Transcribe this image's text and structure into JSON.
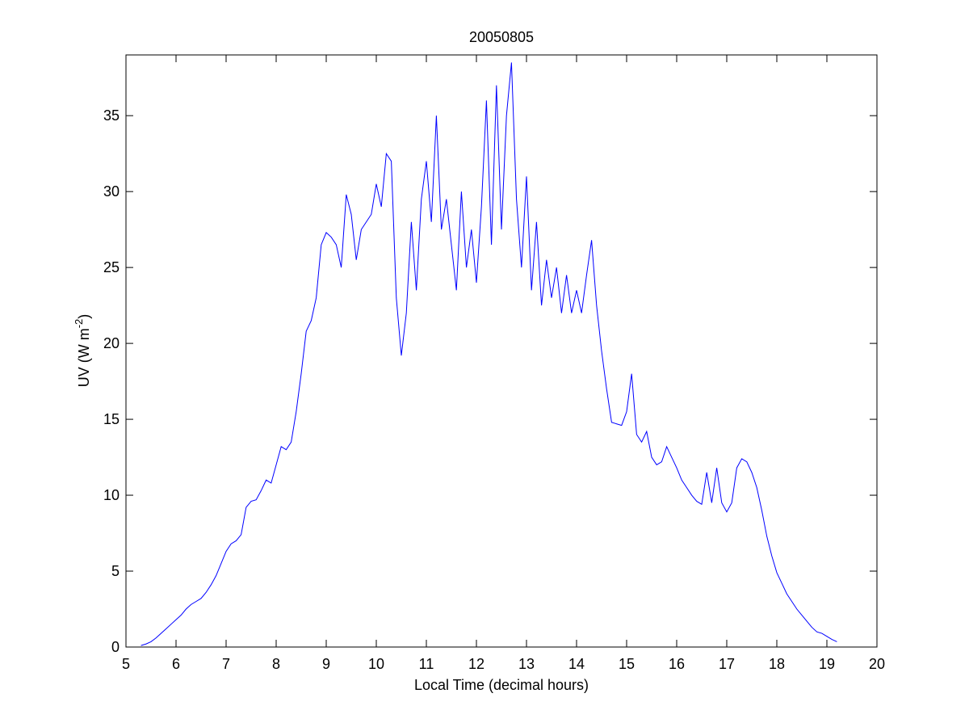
{
  "chart_data": {
    "type": "line",
    "title": "20050805",
    "xlabel": "Local Time (decimal hours)",
    "ylabel": [
      "UV (W m",
      "-2",
      ")"
    ],
    "xlim": [
      5,
      20
    ],
    "ylim": [
      0,
      39
    ],
    "xticks": [
      5,
      6,
      7,
      8,
      9,
      10,
      11,
      12,
      13,
      14,
      15,
      16,
      17,
      18,
      19,
      20
    ],
    "yticks": [
      0,
      5,
      10,
      15,
      20,
      25,
      30,
      35
    ],
    "grid": false,
    "series": [
      {
        "color": "#0000ff",
        "x": [
          5.3,
          5.4,
          5.5,
          5.6,
          5.7,
          5.8,
          5.9,
          6.0,
          6.1,
          6.2,
          6.3,
          6.4,
          6.5,
          6.6,
          6.7,
          6.8,
          6.9,
          7.0,
          7.1,
          7.2,
          7.3,
          7.4,
          7.5,
          7.6,
          7.7,
          7.8,
          7.9,
          8.0,
          8.1,
          8.2,
          8.3,
          8.4,
          8.5,
          8.6,
          8.7,
          8.8,
          8.9,
          9.0,
          9.1,
          9.2,
          9.3,
          9.4,
          9.5,
          9.6,
          9.7,
          9.8,
          9.9,
          10.0,
          10.1,
          10.2,
          10.3,
          10.4,
          10.5,
          10.6,
          10.7,
          10.8,
          10.9,
          11.0,
          11.1,
          11.2,
          11.3,
          11.4,
          11.5,
          11.6,
          11.7,
          11.8,
          11.9,
          12.0,
          12.1,
          12.2,
          12.3,
          12.4,
          12.5,
          12.6,
          12.7,
          12.8,
          12.9,
          13.0,
          13.1,
          13.2,
          13.3,
          13.4,
          13.5,
          13.6,
          13.7,
          13.8,
          13.9,
          14.0,
          14.1,
          14.2,
          14.3,
          14.4,
          14.5,
          14.6,
          14.7,
          14.8,
          14.9,
          15.0,
          15.1,
          15.2,
          15.3,
          15.4,
          15.5,
          15.6,
          15.7,
          15.8,
          15.9,
          16.0,
          16.1,
          16.2,
          16.3,
          16.4,
          16.5,
          16.6,
          16.7,
          16.8,
          16.9,
          17.0,
          17.1,
          17.2,
          17.3,
          17.4,
          17.5,
          17.6,
          17.7,
          17.8,
          17.9,
          18.0,
          18.1,
          18.2,
          18.3,
          18.4,
          18.5,
          18.6,
          18.7,
          18.8,
          18.9,
          19.0,
          19.1,
          19.2
        ],
        "values": [
          0.1,
          0.2,
          0.35,
          0.6,
          0.9,
          1.2,
          1.5,
          1.8,
          2.1,
          2.5,
          2.8,
          3.0,
          3.2,
          3.6,
          4.1,
          4.7,
          5.5,
          6.3,
          6.8,
          7.0,
          7.4,
          9.2,
          9.6,
          9.7,
          10.3,
          11.0,
          10.8,
          12.0,
          13.2,
          13.0,
          13.5,
          15.5,
          18.0,
          20.8,
          21.5,
          23.0,
          26.5,
          27.3,
          27.0,
          26.5,
          25.0,
          29.8,
          28.5,
          25.5,
          27.5,
          28.0,
          28.5,
          30.5,
          29.0,
          32.5,
          32.0,
          23.0,
          19.2,
          22.0,
          28.0,
          23.5,
          29.5,
          32.0,
          28.0,
          35.0,
          27.5,
          29.5,
          26.5,
          23.5,
          30.0,
          25.0,
          27.5,
          24.0,
          29.0,
          36.0,
          26.5,
          37.0,
          27.5,
          35.0,
          38.5,
          29.5,
          25.0,
          31.0,
          23.5,
          28.0,
          22.5,
          25.5,
          23.0,
          25.0,
          22.0,
          24.5,
          22.0,
          23.5,
          22.0,
          24.5,
          26.8,
          22.5,
          19.5,
          17.0,
          14.8,
          14.7,
          14.6,
          15.5,
          18.0,
          14.0,
          13.5,
          14.2,
          12.5,
          12.0,
          12.2,
          13.2,
          12.5,
          11.8,
          11.0,
          10.5,
          10.0,
          9.6,
          9.4,
          11.5,
          9.5,
          11.8,
          9.5,
          8.9,
          9.5,
          11.8,
          12.4,
          12.2,
          11.5,
          10.5,
          9.0,
          7.3,
          6.0,
          4.9,
          4.2,
          3.5,
          3.0,
          2.5,
          2.1,
          1.7,
          1.3,
          1.0,
          0.9,
          0.7,
          0.5,
          0.35
        ]
      }
    ]
  }
}
